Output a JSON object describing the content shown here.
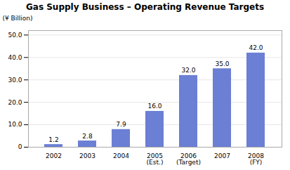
{
  "chart_data": {
    "type": "bar",
    "title": "Gas Supply Business – Operating Revenue Targets",
    "ylabel": "(¥ Billion)",
    "categories": [
      "2002",
      "2003",
      "2004",
      "2005\n(Est.)",
      "2006\n(Target)",
      "2007",
      "2008\n(FY)"
    ],
    "values": [
      1.2,
      2.8,
      7.9,
      16.0,
      32.0,
      35.0,
      42.0
    ],
    "value_labels": [
      "1.2",
      "2.8",
      "7.9",
      "16.0",
      "32.0",
      "35.0",
      "42.0"
    ],
    "data_labels": true,
    "color": "#6b7fd4",
    "ylim": [
      0,
      52
    ],
    "yticks": [
      0,
      {
        "value": 10,
        "label": "10.0"
      },
      {
        "value": 20,
        "label": "20.0"
      },
      {
        "value": 30,
        "label": "30.0"
      },
      {
        "value": 40,
        "label": "40.0"
      },
      {
        "value": 50,
        "label": "50.0"
      }
    ],
    "grid": true
  }
}
